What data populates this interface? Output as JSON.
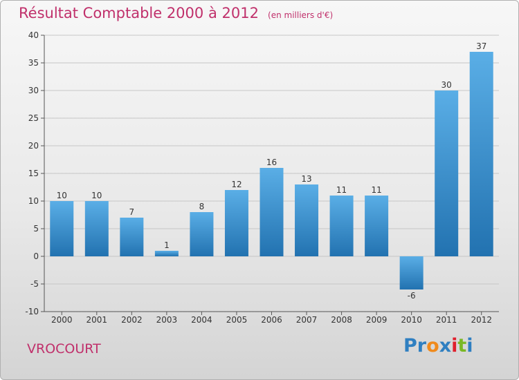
{
  "header": {
    "title": "Résultat Comptable 2000 à 2012",
    "unit": "(en milliers d'€)"
  },
  "footer": {
    "commune": "VROCOURT",
    "logo_text": "Proxiti",
    "logo_letters": [
      {
        "ch": "P",
        "color": "#2f7fc1"
      },
      {
        "ch": "r",
        "color": "#2f7fc1"
      },
      {
        "ch": "o",
        "color": "#f08a1c"
      },
      {
        "ch": "x",
        "color": "#2f7fc1"
      },
      {
        "ch": "i",
        "color": "#e0202d"
      },
      {
        "ch": "t",
        "color": "#7ab825"
      },
      {
        "ch": "i",
        "color": "#2f7fc1"
      }
    ]
  },
  "colors": {
    "bar_top": "#5aaee6",
    "bar_bottom": "#2272b0",
    "grid": "#c6c6c6",
    "title": "#c0306b"
  },
  "chart_data": {
    "type": "bar",
    "title": "Résultat Comptable 2000 à 2012",
    "subtitle": "(en milliers d'€)",
    "xlabel": "",
    "ylabel": "",
    "categories": [
      "2000",
      "2001",
      "2002",
      "2003",
      "2004",
      "2005",
      "2006",
      "2007",
      "2008",
      "2009",
      "2010",
      "2011",
      "2012"
    ],
    "values": [
      10,
      10,
      7,
      1,
      8,
      12,
      16,
      13,
      11,
      11,
      -6,
      30,
      37
    ],
    "ylim": [
      -10,
      40
    ],
    "yticks": [
      -10,
      -5,
      0,
      5,
      10,
      15,
      20,
      25,
      30,
      35,
      40
    ],
    "grid": true
  }
}
